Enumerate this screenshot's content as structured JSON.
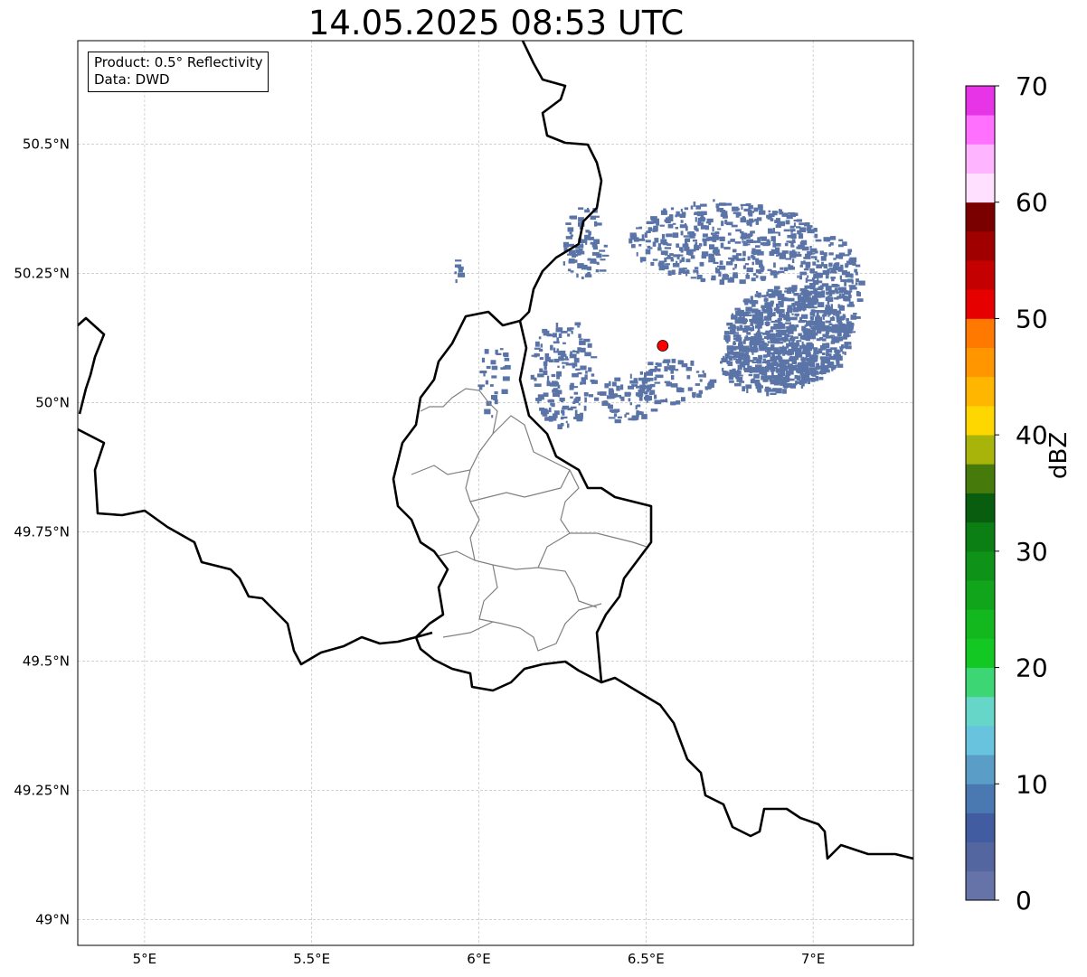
{
  "title": "14.05.2025 08:53 UTC",
  "info_box": {
    "product": "Product: 0.5° Reflectivity",
    "data_source": "Data: DWD"
  },
  "map": {
    "lon_range": [
      4.8,
      7.3
    ],
    "lat_range": [
      48.95,
      50.7
    ],
    "lon_ticks": [
      {
        "value": 5.0,
        "label": "5°E"
      },
      {
        "value": 5.5,
        "label": "5.5°E"
      },
      {
        "value": 6.0,
        "label": "6°E"
      },
      {
        "value": 6.5,
        "label": "6.5°E"
      },
      {
        "value": 7.0,
        "label": "7°E"
      }
    ],
    "lat_ticks": [
      {
        "value": 49.0,
        "label": "49°N"
      },
      {
        "value": 49.25,
        "label": "49.25°N"
      },
      {
        "value": 49.5,
        "label": "49.5°N"
      },
      {
        "value": 49.75,
        "label": "49.75°N"
      },
      {
        "value": 50.0,
        "label": "50°N"
      },
      {
        "value": 50.25,
        "label": "50.25°N"
      },
      {
        "value": 50.5,
        "label": "50.5°N"
      }
    ],
    "grid": true,
    "radar_site": {
      "lon": 6.55,
      "lat": 50.11,
      "color": "#ff0000"
    },
    "echo_color": "#5a74a8"
  },
  "colorbar": {
    "label": "dBZ",
    "min": 0,
    "max": 70,
    "ticks": [
      0,
      10,
      20,
      30,
      40,
      50,
      60,
      70
    ],
    "colors": [
      "#6673a8",
      "#5366a0",
      "#415ca0",
      "#4a78b0",
      "#5a9ec8",
      "#68c3de",
      "#66d6c8",
      "#3dd674",
      "#14c823",
      "#12b81e",
      "#10a51a",
      "#0e9218",
      "#0b7e14",
      "#095d0e",
      "#467a0a",
      "#a8b40a",
      "#ffd700",
      "#ffb600",
      "#ff9600",
      "#ff7800",
      "#e60000",
      "#c40000",
      "#a00000",
      "#7a0000",
      "#ffe0ff",
      "#ffb4ff",
      "#ff70ff",
      "#e634e6"
    ]
  }
}
